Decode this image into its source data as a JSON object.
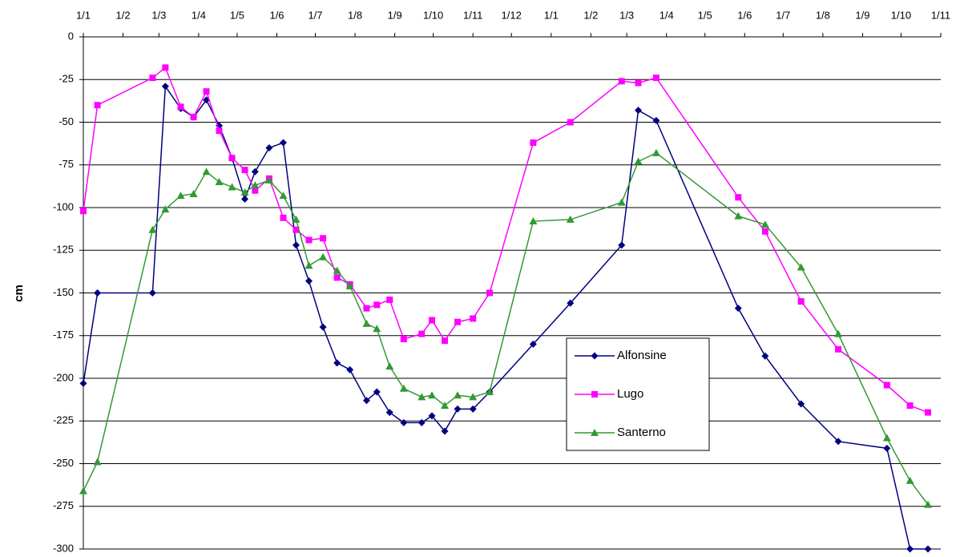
{
  "chart_data": {
    "type": "line",
    "ylabel": "cm",
    "x": [
      0,
      11,
      54,
      64,
      76,
      86,
      96,
      106,
      116,
      126,
      134,
      145,
      156,
      166,
      176,
      187,
      198,
      208,
      221,
      229,
      239,
      250,
      264,
      272,
      282,
      292,
      304,
      317,
      351,
      380,
      420,
      433,
      447,
      511,
      532,
      560,
      589,
      627,
      645,
      659
    ],
    "series": [
      {
        "name": "Alfonsine",
        "color": "#000080",
        "marker": "diamond",
        "values": [
          -203,
          -150,
          -150,
          -29,
          -42,
          -47,
          -37,
          -52,
          -71,
          -95,
          -79,
          -65,
          -62,
          -122,
          -143,
          -170,
          -191,
          -195,
          -213,
          -208,
          -220,
          -226,
          -226,
          -222,
          -231,
          -218,
          -218,
          -208,
          -180,
          -156,
          -122,
          -43,
          -49,
          -159,
          -187,
          -215,
          -237,
          -241,
          -300,
          -300
        ]
      },
      {
        "name": "Lugo",
        "color": "#ff00ff",
        "marker": "square",
        "values": [
          -102,
          -40,
          -24,
          -18,
          -41,
          -47,
          -32,
          -55,
          -71,
          -78,
          -90,
          -83,
          -106,
          -113,
          -119,
          -118,
          -141,
          -145,
          -159,
          -157,
          -154,
          -177,
          -174,
          -166,
          -178,
          -167,
          -165,
          -150,
          -62,
          -50,
          -26,
          -27,
          -24,
          -94,
          -114,
          -155,
          -183,
          -204,
          -216,
          -220
        ]
      },
      {
        "name": "Santerno",
        "color": "#339933",
        "marker": "triangle",
        "values": [
          -266,
          -249,
          -113,
          -101,
          -93,
          -92,
          -79,
          -85,
          -88,
          -91,
          -87,
          -84,
          -93,
          -107,
          -134,
          -129,
          -137,
          -146,
          -168,
          -171,
          -193,
          -206,
          -211,
          -210,
          -216,
          -210,
          -211,
          -208,
          -108,
          -107,
          -97,
          -73,
          -68,
          -105,
          -110,
          -135,
          -174,
          -235,
          -260,
          -274
        ]
      }
    ],
    "xlim": [
      0,
      669
    ],
    "xticks": [
      {
        "value": 0,
        "label": "1/1"
      },
      {
        "value": 31,
        "label": "1/2"
      },
      {
        "value": 59,
        "label": "1/3"
      },
      {
        "value": 90,
        "label": "1/4"
      },
      {
        "value": 120,
        "label": "1/5"
      },
      {
        "value": 151,
        "label": "1/6"
      },
      {
        "value": 181,
        "label": "1/7"
      },
      {
        "value": 212,
        "label": "1/8"
      },
      {
        "value": 243,
        "label": "1/9"
      },
      {
        "value": 273,
        "label": "1/10"
      },
      {
        "value": 304,
        "label": "1/11"
      },
      {
        "value": 334,
        "label": "1/12"
      },
      {
        "value": 365,
        "label": "1/1"
      },
      {
        "value": 396,
        "label": "1/2"
      },
      {
        "value": 424,
        "label": "1/3"
      },
      {
        "value": 455,
        "label": "1/4"
      },
      {
        "value": 485,
        "label": "1/5"
      },
      {
        "value": 516,
        "label": "1/6"
      },
      {
        "value": 546,
        "label": "1/7"
      },
      {
        "value": 577,
        "label": "1/8"
      },
      {
        "value": 608,
        "label": "1/9"
      },
      {
        "value": 638,
        "label": "1/10"
      },
      {
        "value": 669,
        "label": "1/11"
      }
    ],
    "ylim": [
      -300,
      0
    ],
    "yticks": [
      0,
      -25,
      -50,
      -75,
      -100,
      -125,
      -150,
      -175,
      -200,
      -225,
      -250,
      -275,
      -300
    ],
    "grid": true,
    "legend": "center-right"
  }
}
